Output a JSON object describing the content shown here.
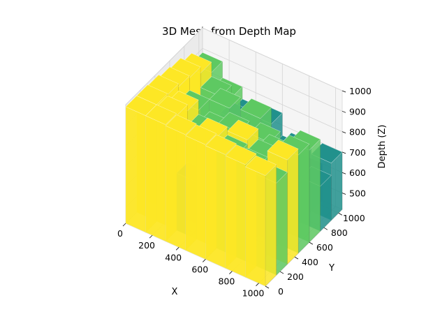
{
  "chart_data": {
    "type": "surface",
    "title": "3D Mesh from Depth Map",
    "xlabel": "X",
    "ylabel": "Y",
    "zlabel": "Depth (Z)",
    "xlim": [
      0,
      1050
    ],
    "ylim": [
      0,
      1050
    ],
    "zlim": [
      420,
      1000
    ],
    "x_ticks": [
      0,
      200,
      400,
      600,
      800,
      1000
    ],
    "y_ticks": [
      0,
      200,
      400,
      600,
      800,
      1000
    ],
    "z_ticks": [
      500,
      600,
      700,
      800,
      900,
      1000
    ],
    "colormap": [
      "#440154",
      "#3b528b",
      "#21918c",
      "#5ec962",
      "#fde725"
    ],
    "grid": true,
    "depth_grid": {
      "x": [
        0,
        150,
        300,
        450,
        600,
        750,
        900,
        1050
      ],
      "y": [
        0,
        150,
        300,
        450,
        600,
        750,
        900,
        1050
      ],
      "z": [
        [
          990,
          990,
          985,
          980,
          975,
          970,
          960,
          955
        ],
        [
          990,
          980,
          700,
          960,
          920,
          900,
          870,
          860
        ],
        [
          985,
          950,
          880,
          720,
          940,
          890,
          930,
          880
        ],
        [
          970,
          900,
          840,
          880,
          760,
          860,
          900,
          850
        ],
        [
          960,
          720,
          900,
          700,
          820,
          780,
          870,
          820
        ],
        [
          930,
          860,
          780,
          840,
          700,
          760,
          640,
          800
        ],
        [
          880,
          800,
          740,
          760,
          650,
          600,
          700,
          760
        ],
        [
          820,
          760,
          460,
          700,
          480,
          620,
          560,
          450
        ]
      ]
    }
  }
}
